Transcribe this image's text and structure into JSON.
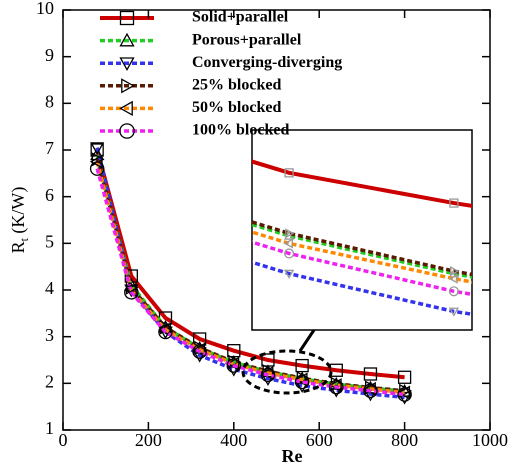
{
  "chart_data": {
    "type": "line",
    "xlabel": "Re",
    "ylabel": [
      "R",
      "t",
      " (K/W)"
    ],
    "x": [
      80,
      160,
      240,
      320,
      400,
      480,
      560,
      640,
      720,
      800
    ],
    "xlim": [
      0,
      1000
    ],
    "xticks": [
      0,
      200,
      400,
      600,
      800,
      1000
    ],
    "ylim": [
      1,
      10
    ],
    "yticks": [
      1,
      2,
      3,
      4,
      5,
      6,
      7,
      8,
      9,
      10
    ],
    "series": [
      {
        "name": "Solid+parallel",
        "color": "#cc0000",
        "dashed": false,
        "marker": "square",
        "values": [
          7.0,
          4.3,
          3.4,
          2.95,
          2.7,
          2.5,
          2.38,
          2.28,
          2.2,
          2.13
        ]
      },
      {
        "name": "Porous+parallel",
        "color": "#22cc22",
        "dashed": true,
        "marker": "triangle-up",
        "values": [
          6.9,
          4.1,
          3.2,
          2.75,
          2.45,
          2.25,
          2.1,
          1.98,
          1.9,
          1.83
        ]
      },
      {
        "name": "Converging-diverging",
        "color": "#3333ee",
        "dashed": true,
        "marker": "triangle-down",
        "values": [
          7.05,
          4.0,
          3.1,
          2.6,
          2.3,
          2.1,
          1.95,
          1.85,
          1.77,
          1.7
        ]
      },
      {
        "name": "25% blocked",
        "color": "#5a1a00",
        "dashed": true,
        "marker": "triangle-right",
        "values": [
          6.8,
          4.05,
          3.2,
          2.76,
          2.46,
          2.26,
          2.11,
          1.99,
          1.91,
          1.84
        ]
      },
      {
        "name": "50% blocked",
        "color": "#ff8800",
        "dashed": true,
        "marker": "triangle-left",
        "values": [
          6.75,
          4.0,
          3.15,
          2.72,
          2.42,
          2.22,
          2.08,
          1.96,
          1.88,
          1.8
        ]
      },
      {
        "name": "100% blocked",
        "color": "#ee22ee",
        "dashed": true,
        "marker": "circle",
        "values": [
          6.6,
          3.95,
          3.1,
          2.68,
          2.38,
          2.18,
          2.03,
          1.92,
          1.84,
          1.76
        ]
      }
    ]
  }
}
